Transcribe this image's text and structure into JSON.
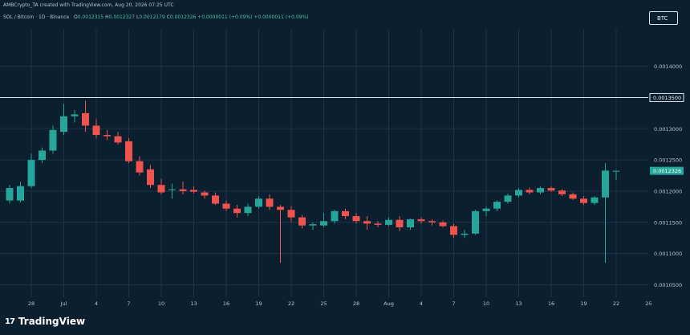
{
  "header": {
    "created_by": "AMBCrypto_TA created with TradingView.com, Aug 20, 2026 07:25 UTC",
    "symbol": "SOL / Bitcoin · 1D · Binance",
    "ohlc": {
      "o_label": "O",
      "o_value": "0.0012315",
      "h_label": "H",
      "h_value": "0.0012327",
      "l_label": "L",
      "l_value": "0.0012179",
      "c_label": "C",
      "c_value": "0.0012326",
      "change": "+0.0000011 (+0.09%)",
      "change2": "+0.0000011 (+0.09%)"
    }
  },
  "currency_button": "BTC",
  "brand": {
    "logo": "17",
    "name": "TradingView"
  },
  "colors": {
    "background": "#0c1f2e",
    "bull": "#26a69a",
    "bear": "#ef5350",
    "grid": "#1b3547",
    "level_line": "#e3eaf0"
  },
  "chart_data": {
    "type": "candlestick",
    "title": "SOL / Bitcoin · 1D · Binance",
    "ylim": [
      0.00103,
      0.00146
    ],
    "y_ticks": [
      "0.0014000",
      "0.0013000",
      "0.0012500",
      "0.0012000",
      "0.0011500",
      "0.0011000",
      "0.0010500"
    ],
    "y_tick_values": [
      0.0014,
      0.0013,
      0.00125,
      0.0012,
      0.00115,
      0.0011,
      0.00105
    ],
    "x_ticks": [
      "28",
      "Jul",
      "4",
      "7",
      "10",
      "13",
      "16",
      "19",
      "22",
      "25",
      "28",
      "Aug",
      "4",
      "7",
      "10",
      "13",
      "16",
      "19",
      "22",
      "25"
    ],
    "x_tick_index": [
      2,
      5,
      8,
      11,
      14,
      17,
      20,
      23,
      26,
      29,
      32,
      35,
      38,
      41,
      44,
      47,
      50,
      53,
      56,
      59
    ],
    "horizontal_line": {
      "value": 0.00135,
      "label": "0.0013500"
    },
    "last_price": {
      "value": 0.0012326,
      "label": "0.0012326"
    },
    "grid": true,
    "candles": [
      {
        "o": 0.001185,
        "h": 0.00121,
        "l": 0.00118,
        "c": 0.001205
      },
      {
        "o": 0.001185,
        "h": 0.001215,
        "l": 0.001182,
        "c": 0.001208
      },
      {
        "o": 0.001208,
        "h": 0.00126,
        "l": 0.001205,
        "c": 0.00125
      },
      {
        "o": 0.00125,
        "h": 0.00127,
        "l": 0.001245,
        "c": 0.001265
      },
      {
        "o": 0.001265,
        "h": 0.001305,
        "l": 0.00126,
        "c": 0.001298
      },
      {
        "o": 0.001295,
        "h": 0.00134,
        "l": 0.00129,
        "c": 0.00132
      },
      {
        "o": 0.00132,
        "h": 0.00133,
        "l": 0.00131,
        "c": 0.001323
      },
      {
        "o": 0.001325,
        "h": 0.001345,
        "l": 0.001295,
        "c": 0.001305
      },
      {
        "o": 0.001305,
        "h": 0.001315,
        "l": 0.001285,
        "c": 0.00129
      },
      {
        "o": 0.00129,
        "h": 0.001298,
        "l": 0.001282,
        "c": 0.001288
      },
      {
        "o": 0.001288,
        "h": 0.001295,
        "l": 0.001275,
        "c": 0.001278
      },
      {
        "o": 0.00128,
        "h": 0.001285,
        "l": 0.001245,
        "c": 0.001248
      },
      {
        "o": 0.001248,
        "h": 0.001256,
        "l": 0.001225,
        "c": 0.00123
      },
      {
        "o": 0.001235,
        "h": 0.001242,
        "l": 0.001205,
        "c": 0.00121
      },
      {
        "o": 0.00121,
        "h": 0.00122,
        "l": 0.001195,
        "c": 0.001198
      },
      {
        "o": 0.001202,
        "h": 0.001212,
        "l": 0.001188,
        "c": 0.001203
      },
      {
        "o": 0.001203,
        "h": 0.001215,
        "l": 0.001195,
        "c": 0.0012
      },
      {
        "o": 0.001202,
        "h": 0.001208,
        "l": 0.001196,
        "c": 0.001199
      },
      {
        "o": 0.001198,
        "h": 0.001201,
        "l": 0.001188,
        "c": 0.001193
      },
      {
        "o": 0.001193,
        "h": 0.001198,
        "l": 0.001178,
        "c": 0.00118
      },
      {
        "o": 0.00118,
        "h": 0.001185,
        "l": 0.001168,
        "c": 0.001172
      },
      {
        "o": 0.001172,
        "h": 0.001178,
        "l": 0.001158,
        "c": 0.001165
      },
      {
        "o": 0.001165,
        "h": 0.00118,
        "l": 0.00116,
        "c": 0.001175
      },
      {
        "o": 0.001175,
        "h": 0.001192,
        "l": 0.001172,
        "c": 0.001188
      },
      {
        "o": 0.001188,
        "h": 0.001195,
        "l": 0.00117,
        "c": 0.001175
      },
      {
        "o": 0.001175,
        "h": 0.001178,
        "l": 0.001085,
        "c": 0.00117
      },
      {
        "o": 0.00117,
        "h": 0.001176,
        "l": 0.00115,
        "c": 0.001158
      },
      {
        "o": 0.001158,
        "h": 0.001162,
        "l": 0.00114,
        "c": 0.001145
      },
      {
        "o": 0.001145,
        "h": 0.00115,
        "l": 0.001138,
        "c": 0.001147
      },
      {
        "o": 0.001145,
        "h": 0.001165,
        "l": 0.001142,
        "c": 0.001152
      },
      {
        "o": 0.001152,
        "h": 0.00117,
        "l": 0.001148,
        "c": 0.001168
      },
      {
        "o": 0.001168,
        "h": 0.001172,
        "l": 0.001155,
        "c": 0.00116
      },
      {
        "o": 0.00116,
        "h": 0.001165,
        "l": 0.001148,
        "c": 0.001152
      },
      {
        "o": 0.001152,
        "h": 0.00116,
        "l": 0.001138,
        "c": 0.001148
      },
      {
        "o": 0.001148,
        "h": 0.001152,
        "l": 0.001142,
        "c": 0.001146
      },
      {
        "o": 0.001146,
        "h": 0.001158,
        "l": 0.001144,
        "c": 0.001154
      },
      {
        "o": 0.001154,
        "h": 0.00116,
        "l": 0.001136,
        "c": 0.001142
      },
      {
        "o": 0.001142,
        "h": 0.001156,
        "l": 0.001138,
        "c": 0.001155
      },
      {
        "o": 0.001155,
        "h": 0.001158,
        "l": 0.001148,
        "c": 0.001152
      },
      {
        "o": 0.001152,
        "h": 0.001155,
        "l": 0.001145,
        "c": 0.00115
      },
      {
        "o": 0.00115,
        "h": 0.001153,
        "l": 0.001142,
        "c": 0.001144
      },
      {
        "o": 0.001144,
        "h": 0.001148,
        "l": 0.001125,
        "c": 0.00113
      },
      {
        "o": 0.00113,
        "h": 0.001138,
        "l": 0.001125,
        "c": 0.001132
      },
      {
        "o": 0.001132,
        "h": 0.00117,
        "l": 0.00113,
        "c": 0.001168
      },
      {
        "o": 0.001168,
        "h": 0.001175,
        "l": 0.00116,
        "c": 0.001172
      },
      {
        "o": 0.001172,
        "h": 0.001185,
        "l": 0.001168,
        "c": 0.001183
      },
      {
        "o": 0.001183,
        "h": 0.001196,
        "l": 0.00118,
        "c": 0.001193
      },
      {
        "o": 0.001193,
        "h": 0.001205,
        "l": 0.00119,
        "c": 0.001202
      },
      {
        "o": 0.001202,
        "h": 0.001206,
        "l": 0.001195,
        "c": 0.001198
      },
      {
        "o": 0.001198,
        "h": 0.001208,
        "l": 0.001195,
        "c": 0.001205
      },
      {
        "o": 0.001205,
        "h": 0.001208,
        "l": 0.001199,
        "c": 0.001201
      },
      {
        "o": 0.001201,
        "h": 0.001203,
        "l": 0.001192,
        "c": 0.001195
      },
      {
        "o": 0.001195,
        "h": 0.001198,
        "l": 0.001186,
        "c": 0.001188
      },
      {
        "o": 0.001188,
        "h": 0.001192,
        "l": 0.001178,
        "c": 0.001181
      },
      {
        "o": 0.001181,
        "h": 0.001192,
        "l": 0.001178,
        "c": 0.00119
      },
      {
        "o": 0.00119,
        "h": 0.001245,
        "l": 0.001085,
        "c": 0.001233
      },
      {
        "o": 0.0012315,
        "h": 0.0012327,
        "l": 0.0012179,
        "c": 0.0012326
      }
    ]
  }
}
